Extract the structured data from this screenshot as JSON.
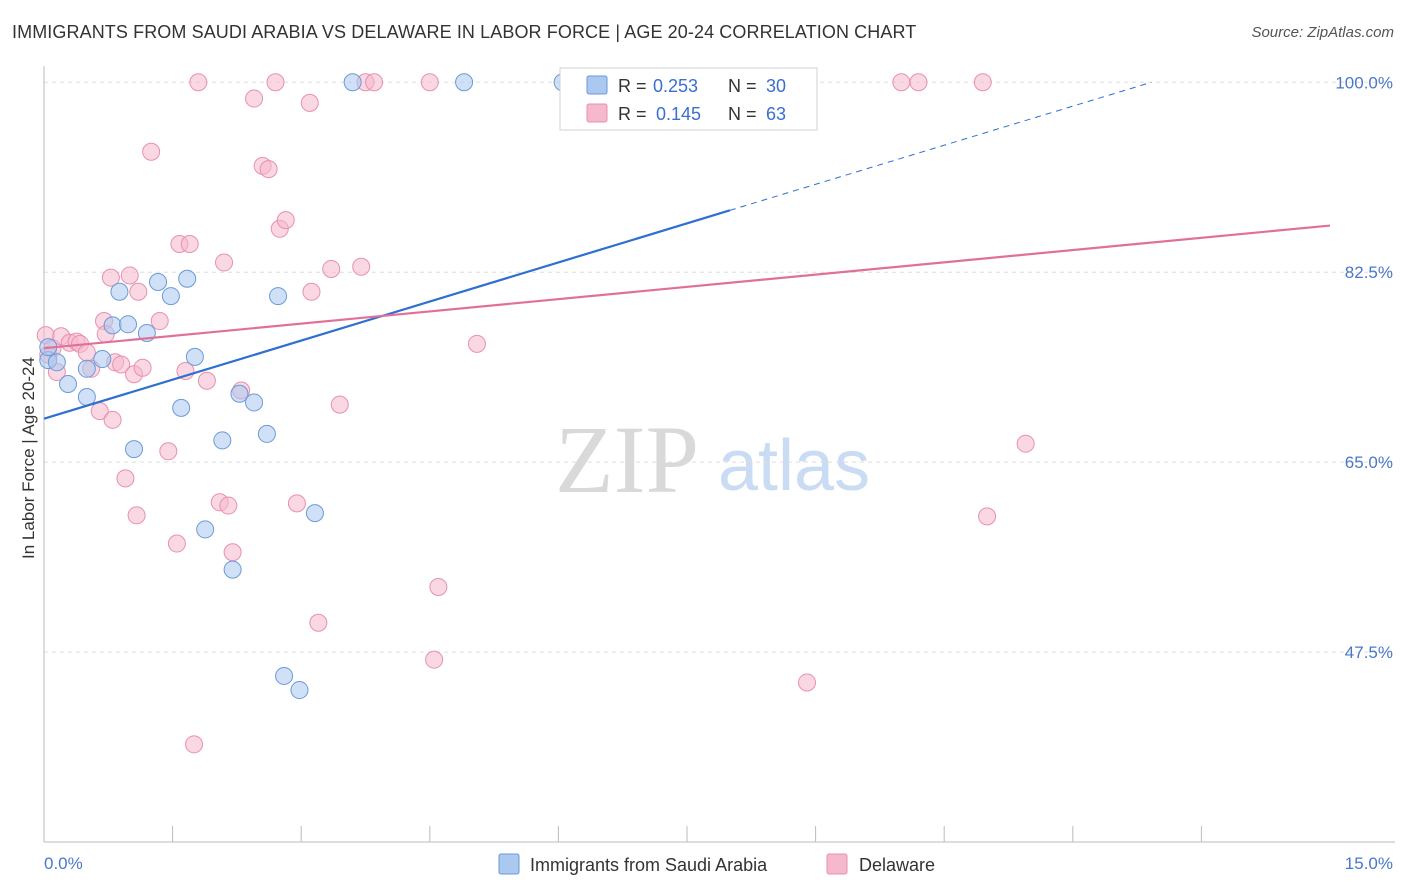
{
  "title": "IMMIGRANTS FROM SAUDI ARABIA VS DELAWARE IN LABOR FORCE | AGE 20-24 CORRELATION CHART",
  "source": "Source: ZipAtlas.com",
  "watermark": {
    "zip": "ZIP",
    "atlas": "atlas"
  },
  "colors": {
    "blue_fill": "#aac8f0",
    "blue_stroke": "#6a9ad8",
    "blue_line": "#2f6fcf",
    "pink_fill": "#f5b8cc",
    "pink_stroke": "#e890ae",
    "pink_line": "#e0709a",
    "tick_text": "#4a78c8",
    "grid": "#dddddd"
  },
  "legend": {
    "rows": [
      {
        "r_label": "R =",
        "r_value": "0.253",
        "n_label": "N =",
        "n_value": "30"
      },
      {
        "r_label": "R =",
        "r_value": "0.145",
        "n_label": "N =",
        "n_value": "63"
      }
    ]
  },
  "bottom_legend": [
    "Immigrants from Saudi Arabia",
    "Delaware"
  ],
  "chart_data": {
    "type": "scatter",
    "xlabel": "",
    "ylabel": "In Labor Force | Age 20-24",
    "xlim": [
      0,
      15
    ],
    "ylim": [
      30,
      101.5
    ],
    "x_tick_labels": [
      {
        "v": 0,
        "label": "0.0%"
      },
      {
        "v": 15,
        "label": "15.0%"
      }
    ],
    "y_tick_labels": [
      {
        "v": 100,
        "label": "100.0%"
      },
      {
        "v": 82.5,
        "label": "82.5%"
      },
      {
        "v": 65,
        "label": "65.0%"
      },
      {
        "v": 47.5,
        "label": "47.5%"
      }
    ],
    "x_minor_ticks": [
      1.5,
      3.0,
      4.5,
      6.0,
      7.5,
      9.0,
      10.5,
      12.0,
      13.5
    ],
    "series": [
      {
        "name": "Immigrants from Saudi Arabia",
        "color": "blue",
        "points": [
          [
            0.05,
            74.4
          ],
          [
            0.15,
            74.2
          ],
          [
            0.28,
            72.2
          ],
          [
            0.5,
            71.0
          ],
          [
            0.5,
            73.6
          ],
          [
            0.68,
            74.5
          ],
          [
            0.8,
            77.6
          ],
          [
            0.88,
            80.7
          ],
          [
            0.98,
            77.7
          ],
          [
            1.05,
            66.2
          ],
          [
            1.2,
            76.9
          ],
          [
            1.33,
            81.6
          ],
          [
            1.48,
            80.3
          ],
          [
            1.6,
            70.0
          ],
          [
            1.67,
            81.9
          ],
          [
            1.76,
            74.7
          ],
          [
            1.88,
            58.8
          ],
          [
            2.08,
            67.0
          ],
          [
            2.2,
            55.1
          ],
          [
            2.28,
            71.3
          ],
          [
            2.45,
            70.5
          ],
          [
            2.6,
            67.6
          ],
          [
            2.73,
            80.3
          ],
          [
            2.8,
            45.3
          ],
          [
            2.98,
            44.0
          ],
          [
            3.16,
            60.3
          ],
          [
            3.6,
            100.0
          ],
          [
            4.9,
            100.0
          ],
          [
            6.05,
            100.0
          ],
          [
            0.05,
            75.6
          ]
        ]
      },
      {
        "name": "Delaware",
        "color": "pink",
        "points": [
          [
            0.02,
            76.7
          ],
          [
            0.05,
            74.9
          ],
          [
            0.1,
            75.5
          ],
          [
            0.15,
            73.3
          ],
          [
            0.2,
            76.6
          ],
          [
            0.3,
            76.0
          ],
          [
            0.38,
            76.1
          ],
          [
            0.42,
            75.9
          ],
          [
            0.5,
            75.1
          ],
          [
            0.55,
            73.6
          ],
          [
            0.65,
            69.7
          ],
          [
            0.7,
            78.0
          ],
          [
            0.72,
            76.8
          ],
          [
            0.78,
            82.0
          ],
          [
            0.8,
            68.9
          ],
          [
            0.83,
            74.2
          ],
          [
            0.9,
            74.0
          ],
          [
            0.95,
            63.5
          ],
          [
            1.0,
            82.2
          ],
          [
            1.05,
            73.1
          ],
          [
            1.08,
            60.1
          ],
          [
            1.1,
            80.7
          ],
          [
            1.15,
            73.7
          ],
          [
            1.25,
            93.6
          ],
          [
            1.35,
            78.0
          ],
          [
            1.45,
            66.0
          ],
          [
            1.55,
            57.5
          ],
          [
            1.58,
            85.1
          ],
          [
            1.65,
            73.4
          ],
          [
            1.7,
            85.1
          ],
          [
            1.75,
            39.0
          ],
          [
            1.8,
            100.0
          ],
          [
            1.9,
            72.5
          ],
          [
            2.05,
            61.3
          ],
          [
            2.1,
            83.4
          ],
          [
            2.15,
            61.0
          ],
          [
            2.2,
            56.7
          ],
          [
            2.3,
            71.6
          ],
          [
            2.45,
            98.5
          ],
          [
            2.55,
            92.3
          ],
          [
            2.62,
            92.0
          ],
          [
            2.7,
            100.0
          ],
          [
            2.75,
            86.5
          ],
          [
            2.82,
            87.3
          ],
          [
            2.95,
            61.2
          ],
          [
            3.1,
            98.1
          ],
          [
            3.12,
            80.7
          ],
          [
            3.2,
            50.2
          ],
          [
            3.35,
            82.8
          ],
          [
            3.45,
            70.3
          ],
          [
            3.7,
            83.0
          ],
          [
            3.75,
            100.0
          ],
          [
            3.85,
            100.0
          ],
          [
            4.5,
            100.0
          ],
          [
            4.55,
            46.8
          ],
          [
            4.6,
            53.5
          ],
          [
            5.05,
            75.9
          ],
          [
            8.9,
            44.7
          ],
          [
            10.0,
            100.0
          ],
          [
            10.2,
            100.0
          ],
          [
            10.95,
            100.0
          ],
          [
            11.0,
            60.0
          ],
          [
            11.45,
            66.7
          ]
        ]
      }
    ],
    "trend_lines": [
      {
        "series": "Immigrants from Saudi Arabia",
        "x0": 0,
        "y0": 69.0,
        "x1": 8.0,
        "y1": 88.2,
        "dashed_to_x": 15.0,
        "dashed_to_y": 105.0
      },
      {
        "series": "Delaware",
        "x0": 0,
        "y0": 75.5,
        "x1": 15.0,
        "y1": 86.8
      }
    ]
  }
}
